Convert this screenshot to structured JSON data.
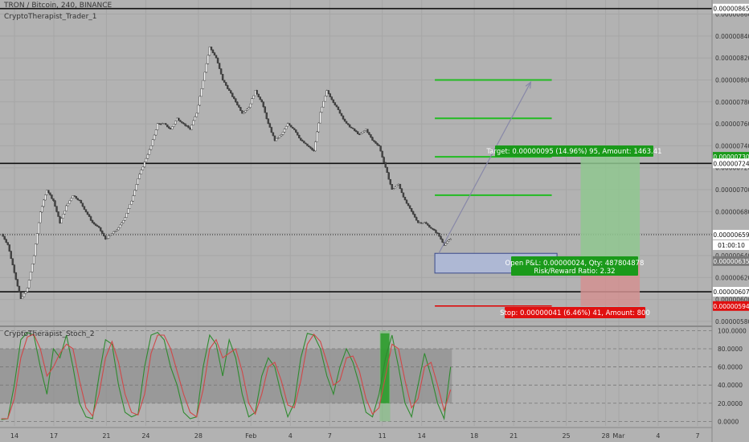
{
  "header": {
    "symbol_line": "TRON / Bitcoin, 240, BINANCE",
    "indicator_name": "CryptoTherapist_Trader_1",
    "stoch_name": "CryptoTherapist_Stoch_2"
  },
  "colors": {
    "background": "#b2b2b2",
    "up": "#ffffff",
    "down": "#444444",
    "target_line": "#22bb22",
    "stop_line": "#e00000",
    "label_green": "#1a9a1a",
    "label_red": "#e01010",
    "stoch_k": "#2f8a2f",
    "stoch_d": "#d04848"
  },
  "chart_data": [
    {
      "type": "candlestick",
      "price_axis": {
        "ticks": [
          "0.00000860",
          "0.00000840",
          "0.00000820",
          "0.00000800",
          "0.00000780",
          "0.00000760",
          "0.00000740",
          "0.00000720",
          "0.00000700",
          "0.00000680",
          "0.00000660",
          "0.00000640",
          "0.00000620",
          "0.00000600",
          "0.00000580"
        ],
        "ylim": [
          5.77e-06,
          8.67e-06
        ]
      },
      "time_axis": {
        "ticks": [
          "14",
          "17",
          "21",
          "24",
          "28",
          "Feb",
          "4",
          "7",
          "11",
          "14",
          "18",
          "21",
          "25",
          "28",
          "Mar",
          "4",
          "7"
        ],
        "tick_days": [
          14,
          17,
          21,
          24,
          28,
          32,
          35,
          38,
          42,
          45,
          49,
          52,
          56,
          59,
          60,
          63,
          66
        ],
        "xlim": [
          12.9,
          67.1
        ]
      },
      "series": [
        {
          "kind": "ohlc_closes",
          "day_start": 13,
          "day_end": 47.2,
          "close": [
            6.6e-06,
            6.5e-06,
            6.25e-06,
            6e-06,
            6.1e-06,
            6.4e-06,
            6.8e-06,
            7e-06,
            6.9e-06,
            6.7e-06,
            6.85e-06,
            6.95e-06,
            6.9e-06,
            6.8e-06,
            6.7e-06,
            6.65e-06,
            6.55e-06,
            6.6e-06,
            6.65e-06,
            6.75e-06,
            6.9e-06,
            7.1e-06,
            7.25e-06,
            7.4e-06,
            7.6e-06,
            7.6e-06,
            7.55e-06,
            7.65e-06,
            7.6e-06,
            7.55e-06,
            7.7e-06,
            8e-06,
            8.3e-06,
            8.2e-06,
            8e-06,
            7.9e-06,
            7.8e-06,
            7.7e-06,
            7.75e-06,
            7.9e-06,
            7.8e-06,
            7.6e-06,
            7.45e-06,
            7.5e-06,
            7.6e-06,
            7.55e-06,
            7.45e-06,
            7.4e-06,
            7.35e-06,
            7.7e-06,
            7.9e-06,
            7.8e-06,
            7.7e-06,
            7.6e-06,
            7.55e-06,
            7.5e-06,
            7.55e-06,
            7.45e-06,
            7.4e-06,
            7.2e-06,
            7e-06,
            7.05e-06,
            6.9e-06,
            6.8e-06,
            6.7e-06,
            6.7e-06,
            6.65e-06,
            6.6e-06,
            6.5e-06,
            6.55e-06
          ]
        }
      ],
      "horizontal_levels": [
        8.65e-06,
        7.24e-06,
        6.07e-06
      ],
      "current_price": 6.59e-06,
      "price_labels": [
        {
          "value": 8.65e-06,
          "text": "0.00000865",
          "style": "white"
        },
        {
          "value": 7.3e-06,
          "text": "0.00000730",
          "style": "green"
        },
        {
          "value": 7.24e-06,
          "text": "0.00000724",
          "style": "white"
        },
        {
          "value": 6.59e-06,
          "text": "0.00000659",
          "style": "white"
        },
        {
          "value": 6.35e-06,
          "text": "0.00000635",
          "style": "gray"
        },
        {
          "value": 6.07e-06,
          "text": "0.00000607",
          "style": "white"
        },
        {
          "value": 5.94e-06,
          "text": "0.00000594",
          "style": "red"
        }
      ],
      "countdown": "01:00:10",
      "target_levels": [
        8e-06,
        7.65e-06,
        7.3e-06,
        6.95e-06
      ],
      "stop_level": 5.94e-06,
      "entry_box": {
        "day_start": 46,
        "day_end": 55.3,
        "low": 6.24e-06,
        "high": 6.42e-06
      },
      "arrow": {
        "from_day": 46.3,
        "from_value": 6.42e-06,
        "to_day": 53.3,
        "to_value": 7.98e-06
      },
      "position": {
        "day_start": 57.1,
        "day_end": 61.6,
        "entry": 6.35e-06,
        "target": 7.3e-06,
        "stop": 5.94e-06
      },
      "annotations": {
        "target_text": "Target: 0.00000095 (14.96%) 95, Amount: 1463.41",
        "pnl_text": "Open P&L: 0.00000024, Qty: 487804878",
        "rr_text": "Risk/Reward Ratio: 2.32",
        "stop_text": "Stop: 0.00000041 (6.46%) 41, Amount: 800"
      }
    },
    {
      "type": "line",
      "name": "CryptoTherapist_Stoch_2",
      "ylim": [
        -5,
        103
      ],
      "y_ticks": [
        "100.0000",
        "80.0000",
        "60.0000",
        "40.0000",
        "20.0000",
        "0.0000"
      ],
      "tick_values": [
        100,
        80,
        60,
        40,
        20,
        0
      ],
      "band": [
        20,
        80
      ],
      "highlight_day_range": [
        41.8,
        42.6
      ],
      "series": [
        {
          "name": "%K",
          "day_start": 13,
          "day_end": 47.2,
          "values": [
            2,
            3,
            40,
            90,
            98,
            95,
            60,
            30,
            80,
            70,
            95,
            60,
            20,
            5,
            3,
            50,
            90,
            85,
            40,
            10,
            5,
            8,
            60,
            95,
            98,
            90,
            60,
            40,
            10,
            3,
            5,
            60,
            95,
            85,
            50,
            90,
            70,
            30,
            5,
            10,
            50,
            70,
            60,
            30,
            5,
            20,
            70,
            97,
            95,
            80,
            50,
            30,
            60,
            80,
            65,
            40,
            10,
            5,
            30,
            70,
            95,
            60,
            20,
            5,
            40,
            75,
            50,
            20,
            3,
            60
          ]
        },
        {
          "name": "%D",
          "day_start": 13,
          "day_end": 47.2,
          "values": [
            3,
            3,
            25,
            70,
            93,
            96,
            80,
            50,
            60,
            75,
            85,
            80,
            45,
            15,
            6,
            30,
            70,
            88,
            65,
            30,
            10,
            7,
            30,
            75,
            95,
            95,
            80,
            55,
            30,
            10,
            5,
            35,
            80,
            90,
            70,
            75,
            80,
            55,
            20,
            8,
            30,
            60,
            65,
            45,
            18,
            15,
            45,
            85,
            96,
            88,
            65,
            40,
            45,
            70,
            72,
            55,
            25,
            8,
            15,
            50,
            85,
            80,
            45,
            15,
            25,
            60,
            65,
            40,
            12,
            35
          ]
        }
      ]
    }
  ]
}
